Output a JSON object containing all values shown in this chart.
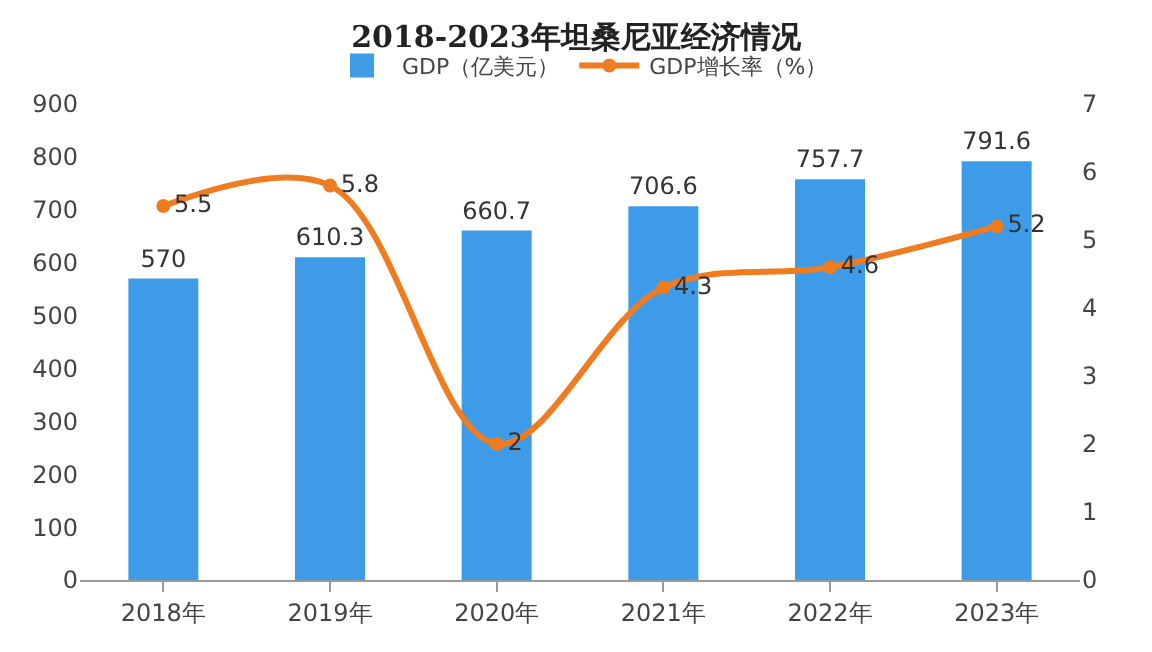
{
  "chart_data": {
    "type": "bar",
    "title": "2018-2023年坦桑尼亚经济情况",
    "categories": [
      "2018年",
      "2019年",
      "2020年",
      "2021年",
      "2022年",
      "2023年"
    ],
    "series": [
      {
        "name": "GDP（亿美元）",
        "color": "#3e9be8",
        "values": [
          570,
          610.3,
          660.7,
          706.6,
          757.7,
          791.6
        ]
      },
      {
        "name": "GDP增长率（%）",
        "type": "line",
        "axis": "y2",
        "color": "#f07c22",
        "values": [
          5.5,
          5.8,
          2,
          4.3,
          4.6,
          5.2
        ]
      }
    ],
    "ylim": [
      0,
      900
    ],
    "yticks": [
      0,
      100,
      200,
      300,
      400,
      500,
      600,
      700,
      800,
      900
    ],
    "y2lim": [
      0,
      7
    ],
    "y2ticks": [
      0,
      1,
      2,
      3,
      4,
      5,
      6,
      7
    ],
    "data_labels": true,
    "grid": false,
    "legend": "top",
    "marker": "circle",
    "line_style": "solid"
  }
}
